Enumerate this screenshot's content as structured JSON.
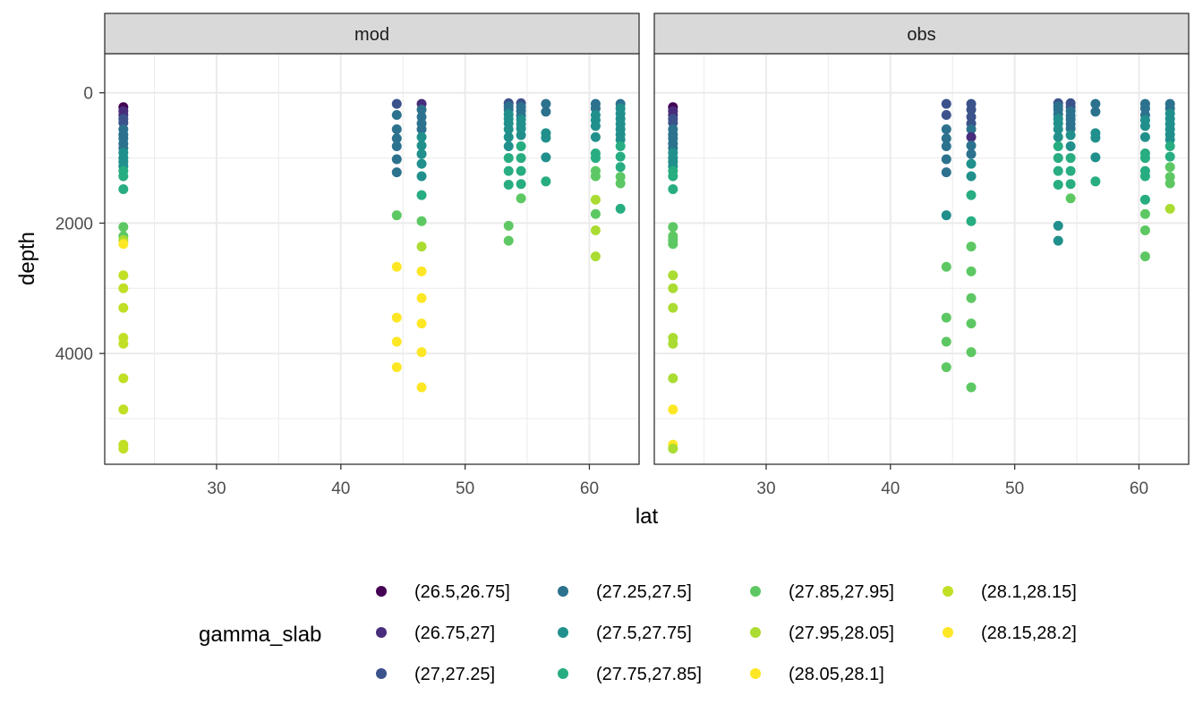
{
  "chart_data": {
    "type": "scatter",
    "xlabel": "lat",
    "ylabel": "depth",
    "xlim": [
      21,
      64
    ],
    "ylim": [
      5700,
      -600
    ],
    "y_reversed": true,
    "x_ticks": [
      30,
      40,
      50,
      60
    ],
    "y_ticks": [
      0,
      2000,
      4000
    ],
    "grid": true,
    "panels": [
      "mod",
      "obs"
    ],
    "legend": {
      "title": "gamma_slab",
      "position": "bottom",
      "columns": 4,
      "categories": [
        {
          "label": "(26.5,26.75]",
          "color": "#440154"
        },
        {
          "label": "(26.75,27]",
          "color": "#472D7B"
        },
        {
          "label": "(27,27.25]",
          "color": "#3B528B"
        },
        {
          "label": "(27.25,27.5]",
          "color": "#2C728E"
        },
        {
          "label": "(27.5,27.75]",
          "color": "#21908C"
        },
        {
          "label": "(27.75,27.85]",
          "color": "#27AD81"
        },
        {
          "label": "(27.85,27.95]",
          "color": "#5DC863"
        },
        {
          "label": "(27.95,28.05]",
          "color": "#AADC32"
        },
        {
          "label": "(28.05,28.1]",
          "color": "#FDE725"
        },
        {
          "label": "(28.1,28.15]",
          "color": "#C0DF25"
        },
        {
          "label": "(28.15,28.2]",
          "color": "#FDE725"
        }
      ]
    },
    "series": [
      {
        "panel": "mod",
        "x": 22.5,
        "points": [
          [
            220,
            0
          ],
          [
            280,
            1
          ],
          [
            340,
            1
          ],
          [
            400,
            2
          ],
          [
            460,
            2
          ],
          [
            560,
            3
          ],
          [
            640,
            3
          ],
          [
            700,
            3
          ],
          [
            780,
            3
          ],
          [
            850,
            3
          ],
          [
            920,
            4
          ],
          [
            1000,
            4
          ],
          [
            1060,
            4
          ],
          [
            1130,
            4
          ],
          [
            1200,
            5
          ],
          [
            1280,
            5
          ],
          [
            1480,
            5
          ],
          [
            2060,
            6
          ],
          [
            2200,
            6
          ],
          [
            2260,
            7
          ],
          [
            2320,
            8
          ],
          [
            2800,
            9
          ],
          [
            3000,
            9
          ],
          [
            3300,
            9
          ],
          [
            3760,
            9
          ],
          [
            3850,
            9
          ],
          [
            4380,
            9
          ],
          [
            4860,
            9
          ],
          [
            5400,
            9
          ],
          [
            5460,
            9
          ]
        ]
      },
      {
        "panel": "mod",
        "x": 44.5,
        "points": [
          [
            170,
            2
          ],
          [
            340,
            3
          ],
          [
            560,
            3
          ],
          [
            700,
            3
          ],
          [
            820,
            3
          ],
          [
            1020,
            3
          ],
          [
            1220,
            3
          ],
          [
            1880,
            6
          ],
          [
            2670,
            8
          ],
          [
            3450,
            8
          ],
          [
            3820,
            8
          ],
          [
            4210,
            8
          ]
        ]
      },
      {
        "panel": "mod",
        "x": 46.5,
        "points": [
          [
            170,
            1
          ],
          [
            260,
            3
          ],
          [
            370,
            3
          ],
          [
            470,
            3
          ],
          [
            560,
            3
          ],
          [
            680,
            4
          ],
          [
            810,
            4
          ],
          [
            940,
            4
          ],
          [
            1090,
            4
          ],
          [
            1280,
            4
          ],
          [
            1570,
            5
          ],
          [
            1970,
            6
          ],
          [
            2360,
            7
          ],
          [
            2740,
            8
          ],
          [
            3150,
            8
          ],
          [
            3540,
            8
          ],
          [
            3980,
            8
          ],
          [
            4520,
            8
          ]
        ]
      },
      {
        "panel": "mod",
        "x": 53.5,
        "points": [
          [
            160,
            2
          ],
          [
            210,
            3
          ],
          [
            260,
            3
          ],
          [
            330,
            4
          ],
          [
            400,
            4
          ],
          [
            470,
            4
          ],
          [
            560,
            4
          ],
          [
            680,
            4
          ],
          [
            820,
            4
          ],
          [
            1000,
            5
          ],
          [
            1200,
            5
          ],
          [
            1410,
            5
          ],
          [
            2040,
            6
          ],
          [
            2270,
            6
          ]
        ]
      },
      {
        "panel": "mod",
        "x": 54.5,
        "points": [
          [
            160,
            2
          ],
          [
            220,
            3
          ],
          [
            280,
            3
          ],
          [
            350,
            3
          ],
          [
            410,
            4
          ],
          [
            480,
            4
          ],
          [
            550,
            4
          ],
          [
            650,
            4
          ],
          [
            820,
            5
          ],
          [
            1000,
            5
          ],
          [
            1200,
            5
          ],
          [
            1400,
            5
          ],
          [
            1620,
            6
          ]
        ]
      },
      {
        "panel": "mod",
        "x": 56.5,
        "points": [
          [
            170,
            3
          ],
          [
            290,
            3
          ],
          [
            620,
            4
          ],
          [
            690,
            4
          ],
          [
            990,
            4
          ],
          [
            1360,
            5
          ]
        ]
      },
      {
        "panel": "mod",
        "x": 60.5,
        "points": [
          [
            170,
            3
          ],
          [
            240,
            3
          ],
          [
            340,
            4
          ],
          [
            420,
            4
          ],
          [
            510,
            4
          ],
          [
            680,
            4
          ],
          [
            930,
            5
          ],
          [
            1000,
            5
          ],
          [
            1200,
            6
          ],
          [
            1280,
            6
          ],
          [
            1640,
            7
          ],
          [
            1860,
            6
          ],
          [
            2110,
            7
          ],
          [
            2510,
            7
          ]
        ]
      },
      {
        "panel": "mod",
        "x": 62.5,
        "points": [
          [
            170,
            3
          ],
          [
            240,
            4
          ],
          [
            320,
            4
          ],
          [
            400,
            4
          ],
          [
            480,
            4
          ],
          [
            560,
            4
          ],
          [
            640,
            4
          ],
          [
            720,
            4
          ],
          [
            820,
            5
          ],
          [
            980,
            5
          ],
          [
            1140,
            5
          ],
          [
            1290,
            6
          ],
          [
            1390,
            6
          ],
          [
            1780,
            5
          ]
        ]
      },
      {
        "panel": "obs",
        "x": 22.5,
        "points": [
          [
            220,
            0
          ],
          [
            280,
            1
          ],
          [
            340,
            1
          ],
          [
            400,
            2
          ],
          [
            460,
            2
          ],
          [
            560,
            3
          ],
          [
            640,
            3
          ],
          [
            700,
            3
          ],
          [
            780,
            3
          ],
          [
            850,
            3
          ],
          [
            920,
            4
          ],
          [
            1000,
            4
          ],
          [
            1060,
            4
          ],
          [
            1130,
            4
          ],
          [
            1200,
            5
          ],
          [
            1280,
            5
          ],
          [
            1480,
            5
          ],
          [
            2060,
            6
          ],
          [
            2200,
            6
          ],
          [
            2260,
            6
          ],
          [
            2320,
            6
          ],
          [
            2800,
            7
          ],
          [
            3000,
            7
          ],
          [
            3300,
            7
          ],
          [
            3760,
            7
          ],
          [
            3850,
            7
          ],
          [
            4380,
            7
          ],
          [
            4860,
            8
          ],
          [
            5400,
            8
          ],
          [
            5460,
            7
          ]
        ]
      },
      {
        "panel": "obs",
        "x": 44.5,
        "points": [
          [
            170,
            2
          ],
          [
            340,
            2
          ],
          [
            560,
            3
          ],
          [
            700,
            3
          ],
          [
            820,
            3
          ],
          [
            1020,
            3
          ],
          [
            1220,
            3
          ],
          [
            1880,
            4
          ],
          [
            2670,
            6
          ],
          [
            3450,
            6
          ],
          [
            3820,
            6
          ],
          [
            4210,
            6
          ]
        ]
      },
      {
        "panel": "obs",
        "x": 46.5,
        "points": [
          [
            170,
            2
          ],
          [
            260,
            2
          ],
          [
            370,
            2
          ],
          [
            470,
            2
          ],
          [
            560,
            3
          ],
          [
            680,
            1
          ],
          [
            810,
            3
          ],
          [
            940,
            3
          ],
          [
            1090,
            4
          ],
          [
            1280,
            4
          ],
          [
            1570,
            5
          ],
          [
            1970,
            5
          ],
          [
            2360,
            6
          ],
          [
            2740,
            6
          ],
          [
            3150,
            6
          ],
          [
            3540,
            6
          ],
          [
            3980,
            6
          ],
          [
            4520,
            6
          ]
        ]
      },
      {
        "panel": "obs",
        "x": 53.5,
        "points": [
          [
            160,
            2
          ],
          [
            210,
            3
          ],
          [
            260,
            3
          ],
          [
            330,
            3
          ],
          [
            400,
            4
          ],
          [
            470,
            4
          ],
          [
            560,
            4
          ],
          [
            680,
            4
          ],
          [
            820,
            5
          ],
          [
            1000,
            5
          ],
          [
            1200,
            5
          ],
          [
            1410,
            5
          ],
          [
            2040,
            4
          ],
          [
            2270,
            4
          ]
        ]
      },
      {
        "panel": "obs",
        "x": 54.5,
        "points": [
          [
            160,
            2
          ],
          [
            220,
            2
          ],
          [
            280,
            3
          ],
          [
            350,
            3
          ],
          [
            410,
            3
          ],
          [
            480,
            3
          ],
          [
            550,
            3
          ],
          [
            650,
            4
          ],
          [
            820,
            4
          ],
          [
            1000,
            5
          ],
          [
            1200,
            5
          ],
          [
            1400,
            5
          ],
          [
            1620,
            6
          ]
        ]
      },
      {
        "panel": "obs",
        "x": 56.5,
        "points": [
          [
            170,
            3
          ],
          [
            290,
            3
          ],
          [
            620,
            4
          ],
          [
            690,
            4
          ],
          [
            990,
            4
          ],
          [
            1360,
            5
          ]
        ]
      },
      {
        "panel": "obs",
        "x": 60.5,
        "points": [
          [
            170,
            3
          ],
          [
            240,
            3
          ],
          [
            340,
            3
          ],
          [
            420,
            4
          ],
          [
            510,
            4
          ],
          [
            680,
            4
          ],
          [
            930,
            5
          ],
          [
            1000,
            5
          ],
          [
            1200,
            5
          ],
          [
            1280,
            5
          ],
          [
            1640,
            5
          ],
          [
            1860,
            6
          ],
          [
            2110,
            6
          ],
          [
            2510,
            6
          ]
        ]
      },
      {
        "panel": "obs",
        "x": 62.5,
        "points": [
          [
            170,
            3
          ],
          [
            240,
            3
          ],
          [
            320,
            4
          ],
          [
            400,
            4
          ],
          [
            480,
            4
          ],
          [
            560,
            4
          ],
          [
            640,
            4
          ],
          [
            720,
            4
          ],
          [
            820,
            5
          ],
          [
            980,
            5
          ],
          [
            1140,
            6
          ],
          [
            1290,
            6
          ],
          [
            1390,
            6
          ],
          [
            1780,
            7
          ]
        ]
      }
    ]
  }
}
